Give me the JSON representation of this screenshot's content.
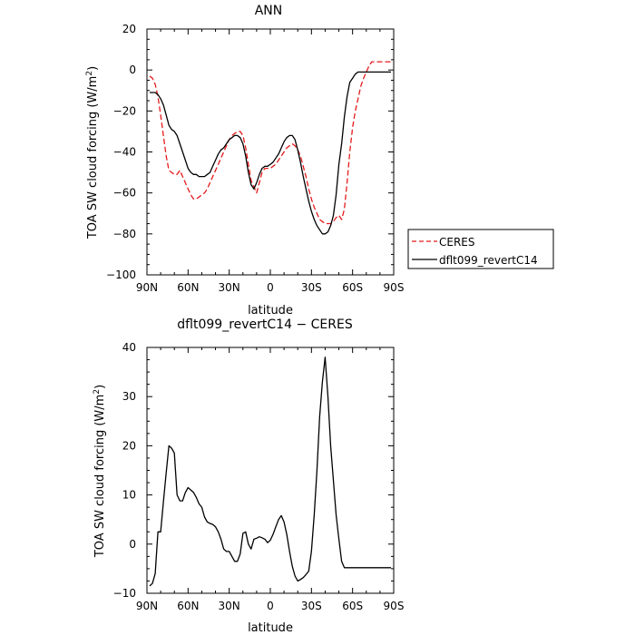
{
  "chart_data": [
    {
      "type": "line",
      "title": "ANN",
      "xlabel": "latitude",
      "ylabel_main": "TOA SW cloud forcing (W/m",
      "ylabel_sup": "2",
      "ylabel_close": ")",
      "xlim": [
        90,
        -90
      ],
      "ylim": [
        -100,
        20
      ],
      "xticks": [
        90,
        60,
        30,
        0,
        -30,
        -60,
        -90
      ],
      "xtick_labels": [
        "90N",
        "60N",
        "30N",
        "0",
        "30S",
        "60S",
        "90S"
      ],
      "yticks": [
        20,
        0,
        -20,
        -40,
        -60,
        -80,
        -100
      ],
      "ytick_labels": [
        "20",
        "0",
        "−20",
        "−40",
        "−60",
        "−80",
        "−100"
      ],
      "legend": {
        "placement": "right"
      },
      "series": [
        {
          "name": "CERES",
          "color": "#e41a1c",
          "dash": true,
          "x": [
            88,
            86,
            84,
            82,
            80,
            78,
            76,
            74,
            72,
            70,
            68,
            66,
            64,
            62,
            60,
            58,
            56,
            54,
            52,
            50,
            48,
            46,
            44,
            42,
            40,
            38,
            36,
            34,
            32,
            30,
            28,
            26,
            24,
            22,
            20,
            18,
            16,
            14,
            12,
            10,
            8,
            6,
            4,
            2,
            0,
            -2,
            -4,
            -6,
            -8,
            -10,
            -12,
            -14,
            -16,
            -18,
            -20,
            -22,
            -24,
            -26,
            -28,
            -30,
            -32,
            -34,
            -36,
            -38,
            -40,
            -42,
            -44,
            -46,
            -48,
            -50,
            -52,
            -54,
            -56,
            -58,
            -60,
            -62,
            -64,
            -66,
            -68,
            -70,
            -72,
            -74,
            -76,
            -78,
            -80,
            -82,
            -84,
            -86,
            -88
          ],
          "y": [
            -3,
            -4,
            -7,
            -13,
            -22,
            -32,
            -42,
            -49,
            -50,
            -51,
            -51,
            -49,
            -52,
            -55,
            -58,
            -61,
            -63,
            -63,
            -62,
            -61,
            -60,
            -58,
            -55,
            -52,
            -49,
            -46,
            -43,
            -40,
            -37,
            -34,
            -32,
            -31,
            -30,
            -30,
            -32,
            -38,
            -46,
            -54,
            -57,
            -60,
            -55,
            -50,
            -48,
            -48,
            -48,
            -47,
            -46,
            -44,
            -42,
            -40,
            -38,
            -37,
            -36,
            -37,
            -39,
            -42,
            -47,
            -52,
            -58,
            -63,
            -67,
            -70,
            -73,
            -74,
            -75,
            -75,
            -75,
            -74,
            -72,
            -71,
            -73,
            -68,
            -55,
            -40,
            -28,
            -20,
            -14,
            -8,
            -4,
            -1,
            2,
            4,
            4,
            4,
            4,
            4,
            4,
            4,
            4
          ]
        },
        {
          "name": "dflt099_revertC14",
          "color": "#000000",
          "dash": false,
          "x": [
            88,
            86,
            84,
            82,
            80,
            78,
            76,
            74,
            72,
            70,
            68,
            66,
            64,
            62,
            60,
            58,
            56,
            54,
            52,
            50,
            48,
            46,
            44,
            42,
            40,
            38,
            36,
            34,
            32,
            30,
            28,
            26,
            24,
            22,
            20,
            18,
            16,
            14,
            12,
            10,
            8,
            6,
            4,
            2,
            0,
            -2,
            -4,
            -6,
            -8,
            -10,
            -12,
            -14,
            -16,
            -18,
            -20,
            -22,
            -24,
            -26,
            -28,
            -30,
            -32,
            -34,
            -36,
            -38,
            -40,
            -42,
            -44,
            -46,
            -48,
            -50,
            -52,
            -54,
            -56,
            -58,
            -60,
            -62,
            -64,
            -66,
            -68,
            -70,
            -72,
            -74,
            -76,
            -78,
            -80,
            -82,
            -84,
            -86,
            -88
          ],
          "y": [
            -11,
            -11,
            -11,
            -12,
            -14,
            -17,
            -22,
            -27,
            -29,
            -30,
            -32,
            -36,
            -40,
            -44,
            -48,
            -50,
            -51,
            -51,
            -52,
            -52,
            -52,
            -51,
            -50,
            -47,
            -44,
            -41,
            -39,
            -38,
            -36,
            -34,
            -33,
            -32,
            -32,
            -33,
            -36,
            -42,
            -50,
            -56,
            -58,
            -55,
            -51,
            -48,
            -47,
            -47,
            -46,
            -45,
            -43,
            -41,
            -38,
            -35,
            -33,
            -32,
            -32,
            -34,
            -39,
            -45,
            -52,
            -58,
            -64,
            -69,
            -73,
            -76,
            -78,
            -80,
            -80,
            -79,
            -76,
            -71,
            -61,
            -46,
            -36,
            -23,
            -13,
            -6,
            -4,
            -2,
            -1,
            -1,
            -1,
            -1,
            -1,
            -1,
            -1,
            -1,
            -1,
            -1,
            -1,
            -1,
            -1
          ]
        }
      ]
    },
    {
      "type": "line",
      "title": "dflt099_revertC14 − CERES",
      "xlabel": "latitude",
      "ylabel_main": "TOA SW cloud forcing (W/m",
      "ylabel_sup": "2",
      "ylabel_close": ")",
      "xlim": [
        90,
        -90
      ],
      "ylim": [
        -10,
        40
      ],
      "xticks": [
        90,
        60,
        30,
        0,
        -30,
        -60,
        -90
      ],
      "xtick_labels": [
        "90N",
        "60N",
        "30N",
        "0",
        "30S",
        "60S",
        "90S"
      ],
      "yticks": [
        40,
        30,
        20,
        10,
        0,
        -10
      ],
      "ytick_labels": [
        "40",
        "30",
        "20",
        "10",
        "0",
        "−10"
      ],
      "series": [
        {
          "color": "#000000",
          "dash": false,
          "x": [
            88,
            86,
            84,
            82,
            80,
            78,
            76,
            74,
            72,
            70,
            68,
            66,
            64,
            62,
            60,
            58,
            56,
            54,
            52,
            50,
            48,
            46,
            44,
            42,
            40,
            38,
            36,
            34,
            32,
            30,
            28,
            26,
            24,
            22,
            20,
            18,
            16,
            14,
            12,
            10,
            8,
            6,
            4,
            2,
            0,
            -2,
            -4,
            -6,
            -8,
            -10,
            -12,
            -14,
            -16,
            -18,
            -20,
            -22,
            -24,
            -26,
            -28,
            -30,
            -32,
            -34,
            -36,
            -38,
            -40,
            -42,
            -44,
            -46,
            -48,
            -50,
            -52,
            -54,
            -56,
            -58,
            -60,
            -62,
            -64,
            -66,
            -68,
            -70,
            -72,
            -74,
            -76,
            -78,
            -80,
            -82,
            -84,
            -86,
            -88
          ],
          "y": [
            -8.5,
            -8,
            -6,
            2.5,
            2.5,
            8.5,
            14.5,
            20,
            19.5,
            18.5,
            10,
            8.8,
            8.8,
            10.5,
            11.5,
            11,
            10.5,
            9.5,
            8.2,
            7.5,
            5.5,
            4.5,
            4.2,
            4,
            3.5,
            2.5,
            1,
            -1,
            -1.5,
            -1.5,
            -2.5,
            -3.5,
            -3.5,
            -2,
            2.2,
            2.5,
            0,
            -1,
            1,
            1.2,
            1.5,
            1.3,
            1,
            0.3,
            0.8,
            2,
            3.5,
            5,
            5.8,
            4.5,
            2,
            -1.5,
            -4.5,
            -6.5,
            -7.5,
            -7.2,
            -6.8,
            -6.2,
            -5.5,
            -1.5,
            6,
            15,
            26,
            33,
            38,
            30,
            20,
            13,
            6,
            1,
            -3.5,
            -4.8,
            -4.8,
            -4.8,
            -4.8,
            -4.8,
            -4.8,
            -4.8,
            -4.8,
            -4.8,
            -4.8,
            -4.8,
            -4.8,
            -4.8,
            -4.8,
            -4.8,
            -4.8,
            -4.8,
            -4.8
          ]
        }
      ]
    }
  ]
}
